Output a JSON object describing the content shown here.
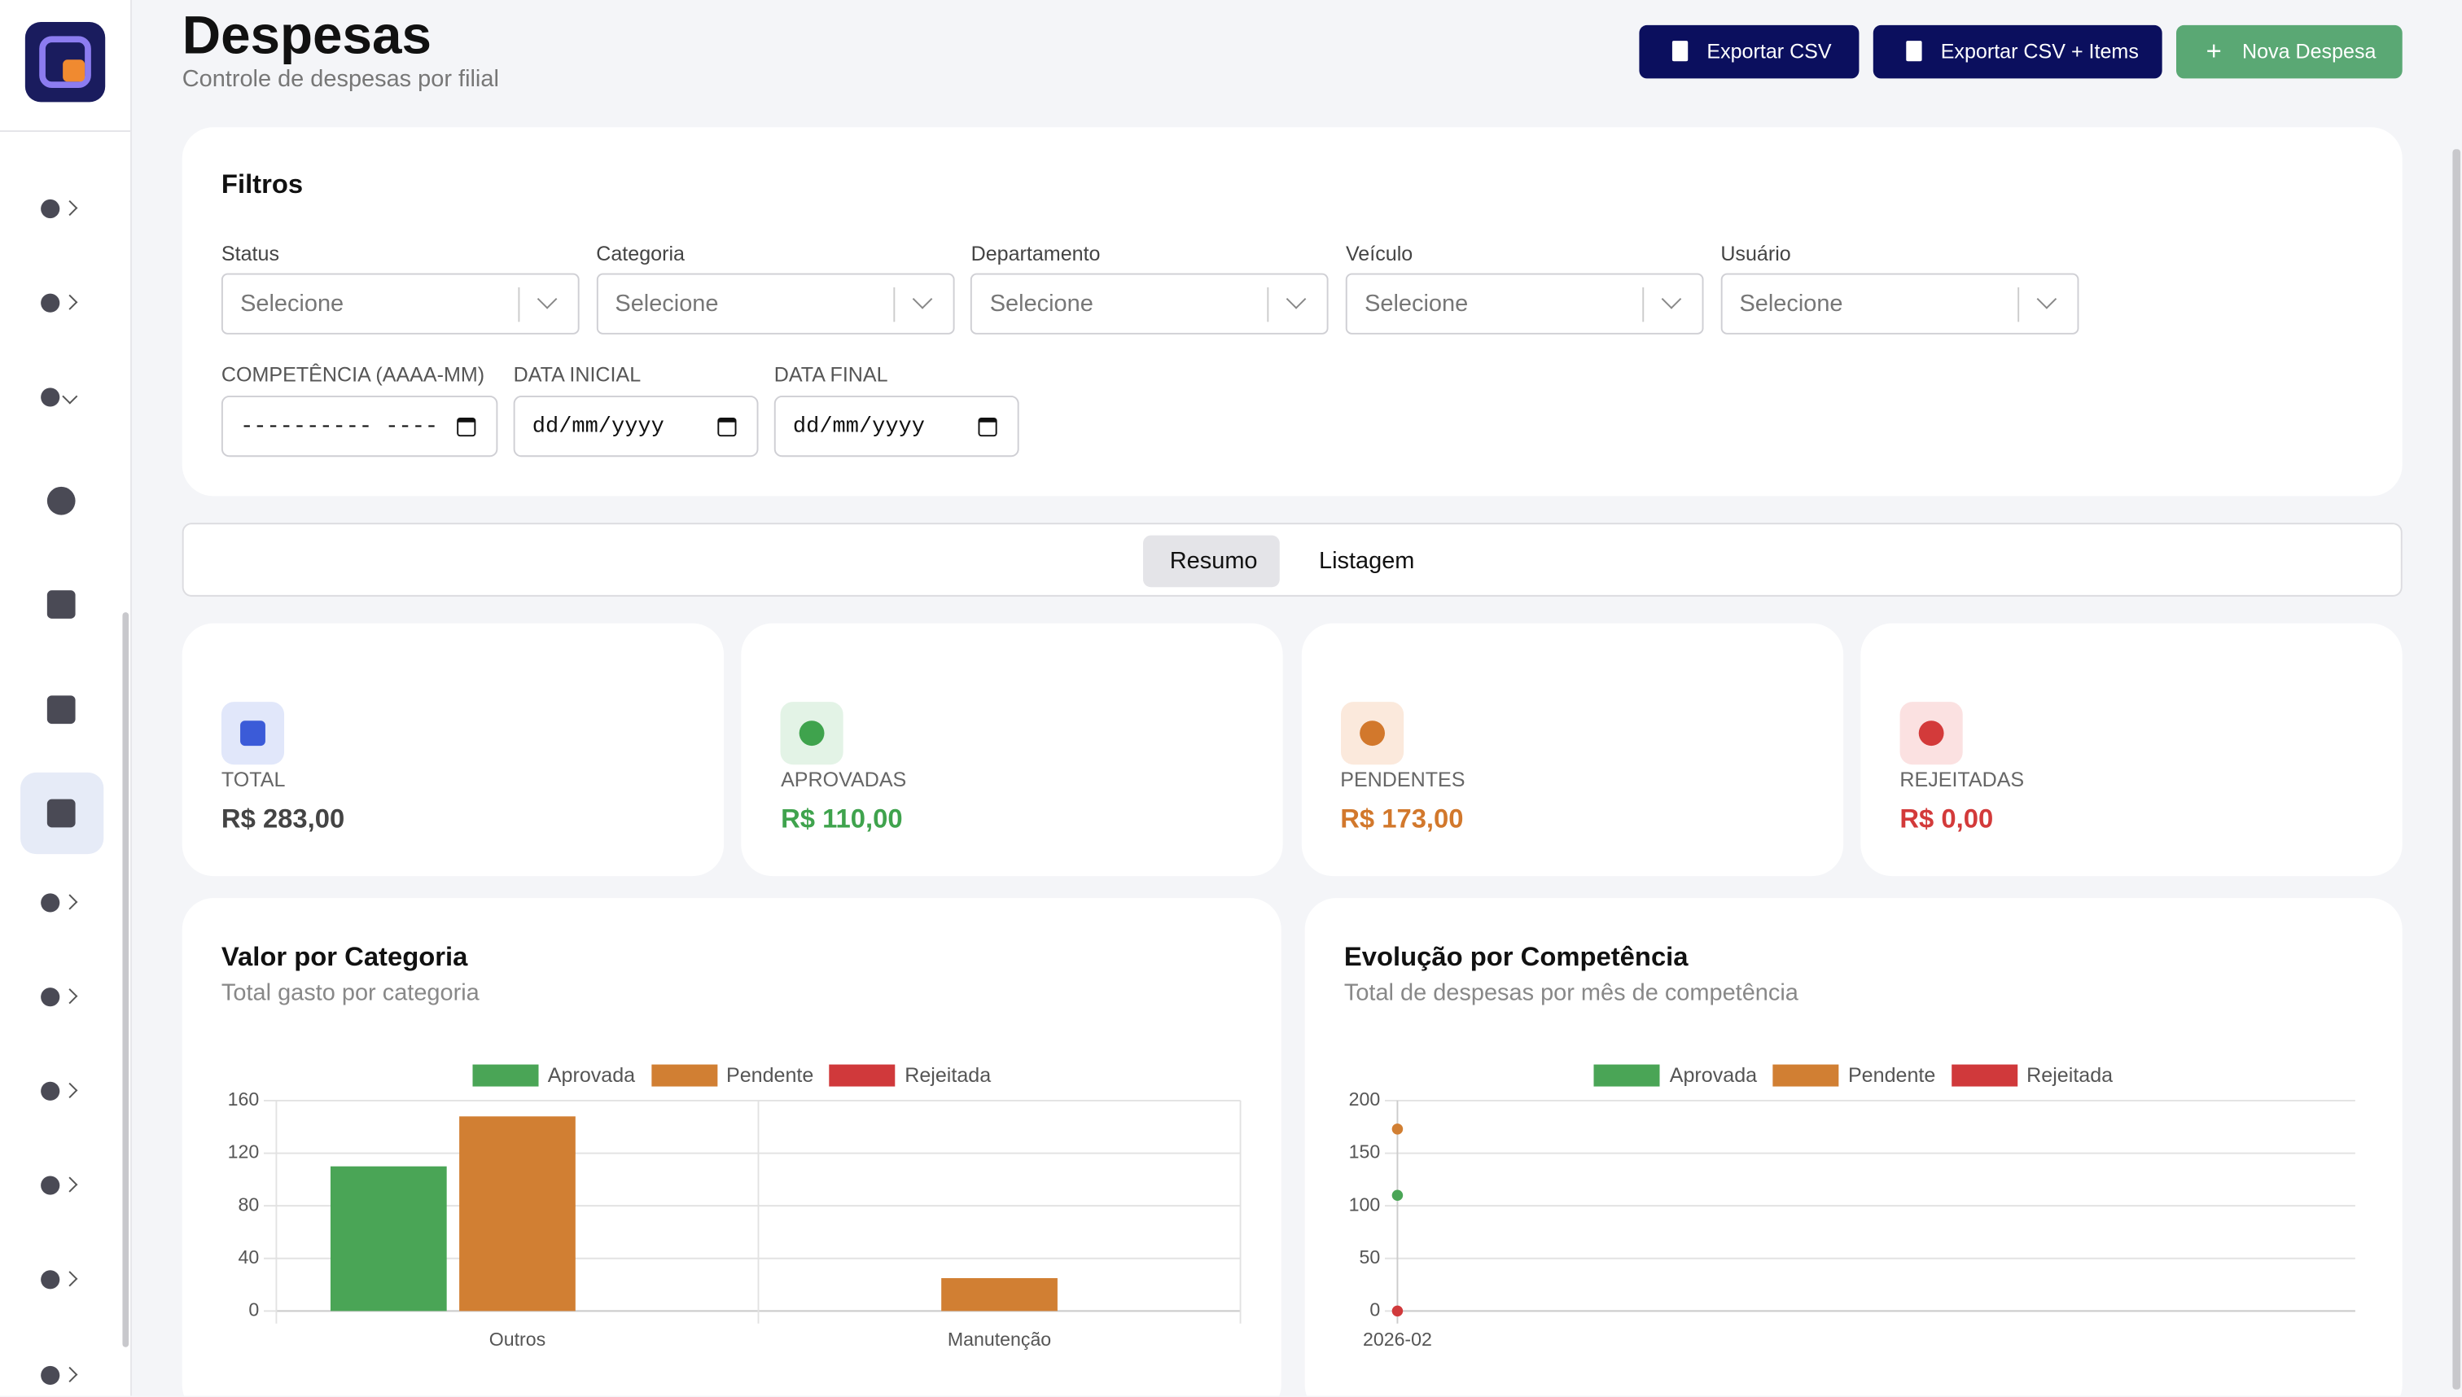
{
  "header": {
    "title": "Despesas",
    "subtitle": "Controle de despesas por filial"
  },
  "actions": [
    "Exportar CSV",
    "Exportar CSV + Items",
    "Nova Despesa"
  ],
  "filters": {
    "title": "Filtros",
    "selects": [
      {
        "label": "Status",
        "placeholder": "Selecione"
      },
      {
        "label": "Categoria",
        "placeholder": "Selecione"
      },
      {
        "label": "Departamento",
        "placeholder": "Selecione"
      },
      {
        "label": "Veículo",
        "placeholder": "Selecione"
      },
      {
        "label": "Usuário",
        "placeholder": "Selecione"
      }
    ],
    "inputs": [
      {
        "label": "COMPETÊNCIA (AAAA-MM)",
        "value": "---------- ----"
      },
      {
        "label": "DATA INICIAL",
        "value": "dd/mm/yyyy"
      },
      {
        "label": "DATA FINAL",
        "value": "dd/mm/yyyy"
      }
    ]
  },
  "tabs": [
    "Resumo",
    "Listagem"
  ],
  "stats": [
    {
      "label": "TOTAL",
      "value": "R$ 283,00"
    },
    {
      "label": "APROVADAS",
      "value": "R$ 110,00"
    },
    {
      "label": "PENDENTES",
      "value": "R$ 173,00"
    },
    {
      "label": "REJEITADAS",
      "value": "R$ 0,00"
    }
  ],
  "chart_data": [
    {
      "type": "bar",
      "title": "Valor por Categoria",
      "subtitle": "Total gasto por categoria",
      "categories": [
        "Outros",
        "Manutenção"
      ],
      "series": [
        {
          "name": "Aprovada",
          "color": "#4aa556",
          "values": [
            110,
            0
          ]
        },
        {
          "name": "Pendente",
          "color": "#d17f33",
          "values": [
            148,
            25
          ]
        },
        {
          "name": "Rejeitada",
          "color": "#d0393b",
          "values": [
            0,
            0
          ]
        }
      ],
      "ylim": [
        0,
        160
      ],
      "yticks": [
        0,
        40,
        80,
        120,
        160
      ],
      "grid": true
    },
    {
      "type": "line",
      "title": "Evolução por Competência",
      "subtitle": "Total de despesas por mês de competência",
      "x": [
        "2026-02"
      ],
      "series": [
        {
          "name": "Aprovada",
          "color": "#4aa556",
          "values": [
            110
          ]
        },
        {
          "name": "Pendente",
          "color": "#d17f33",
          "values": [
            173
          ]
        },
        {
          "name": "Rejeitada",
          "color": "#d0393b",
          "values": [
            0
          ]
        }
      ],
      "ylim": [
        0,
        200
      ],
      "yticks": [
        0,
        50,
        100,
        150,
        200
      ],
      "grid": true
    }
  ]
}
